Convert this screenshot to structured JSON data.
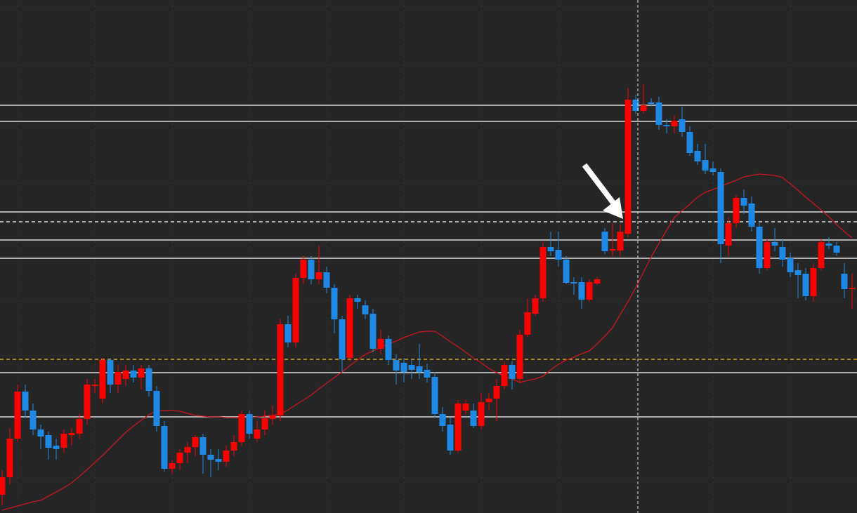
{
  "chart_data": {
    "type": "candlestick",
    "ylim": [
      0,
      731
    ],
    "up_color": "#ff0000",
    "down_color": "#1e88e5",
    "ma_color": "#c8161d",
    "open": [
      26,
      51,
      106,
      173,
      146,
      119,
      111,
      96,
      93,
      111,
      113,
      134,
      181,
      163,
      218,
      183,
      191,
      203,
      193,
      206,
      174,
      124,
      63,
      71,
      86,
      94,
      108,
      83,
      77,
      73,
      89,
      101,
      141,
      106,
      119,
      134,
      139,
      269,
      243,
      335,
      361,
      333,
      343,
      321,
      276,
      221,
      306,
      296,
      284,
      234,
      248,
      218,
      214,
      211,
      209,
      204,
      194,
      141,
      126,
      89,
      146,
      146,
      124,
      158,
      163,
      181,
      211,
      191,
      254,
      284,
      306,
      379,
      375,
      361,
      329,
      329,
      304,
      327,
      401,
      374,
      374,
      398,
      589,
      573,
      585,
      585,
      553,
      551,
      561,
      543,
      516,
      503,
      491,
      486,
      381,
      413,
      449,
      441,
      408,
      349,
      386,
      379,
      363,
      346,
      341,
      309,
      349,
      384,
      381,
      341,
      319
    ],
    "high": [
      61,
      121,
      183,
      183,
      156,
      126,
      116,
      106,
      119,
      121,
      141,
      191,
      191,
      221,
      221,
      211,
      211,
      211,
      211,
      211,
      181,
      131,
      76,
      91,
      101,
      111,
      113,
      91,
      91,
      96,
      111,
      146,
      146,
      131,
      146,
      153,
      276,
      281,
      341,
      366,
      366,
      381,
      351,
      326,
      281,
      311,
      311,
      303,
      291,
      261,
      253,
      226,
      221,
      219,
      241,
      213,
      201,
      151,
      136,
      161,
      161,
      156,
      171,
      171,
      191,
      216,
      216,
      261,
      306,
      311,
      386,
      401,
      401,
      366,
      336,
      336,
      333,
      336,
      406,
      413,
      411,
      606,
      596,
      611,
      591,
      593,
      561,
      566,
      579,
      551,
      526,
      526,
      501,
      491,
      421,
      453,
      461,
      451,
      413,
      391,
      406,
      391,
      371,
      356,
      349,
      356,
      391,
      393,
      386,
      356,
      341
    ],
    "low": [
      11,
      41,
      101,
      136,
      111,
      91,
      76,
      76,
      86,
      96,
      106,
      126,
      171,
      156,
      171,
      171,
      181,
      186,
      176,
      166,
      116,
      59,
      56,
      61,
      71,
      81,
      56,
      51,
      61,
      66,
      81,
      96,
      106,
      101,
      111,
      126,
      131,
      236,
      236,
      326,
      326,
      326,
      313,
      256,
      201,
      216,
      291,
      276,
      229,
      226,
      211,
      183,
      186,
      191,
      191,
      186,
      136,
      116,
      83,
      86,
      141,
      121,
      119,
      146,
      131,
      176,
      176,
      186,
      251,
      281,
      301,
      366,
      351,
      326,
      311,
      291,
      301,
      325,
      369,
      366,
      366,
      393,
      569,
      569,
      581,
      546,
      541,
      541,
      536,
      509,
      496,
      483,
      481,
      356,
      366,
      406,
      426,
      401,
      341,
      346,
      373,
      351,
      336,
      306,
      303,
      301,
      346,
      376,
      366,
      306,
      291
    ],
    "close": [
      51,
      106,
      173,
      146,
      119,
      109,
      93,
      91,
      113,
      114,
      134,
      183,
      183,
      218,
      183,
      201,
      203,
      193,
      206,
      174,
      124,
      63,
      71,
      86,
      94,
      108,
      83,
      76,
      73,
      89,
      101,
      141,
      113,
      119,
      135,
      139,
      269,
      243,
      335,
      361,
      333,
      343,
      321,
      276,
      219,
      306,
      301,
      283,
      234,
      248,
      218,
      203,
      201,
      204,
      201,
      193,
      141,
      124,
      89,
      156,
      156,
      124,
      158,
      163,
      181,
      211,
      191,
      254,
      286,
      306,
      379,
      373,
      361,
      328,
      327,
      304,
      329,
      333,
      373,
      376,
      401,
      589,
      573,
      581,
      583,
      553,
      551,
      559,
      543,
      513,
      501,
      488,
      486,
      383,
      413,
      449,
      438,
      408,
      349,
      386,
      381,
      361,
      343,
      339,
      309,
      349,
      386,
      381,
      371,
      319,
      321
    ],
    "ma": [
      4,
      7,
      10,
      13,
      16,
      18,
      24,
      30,
      36,
      43,
      52,
      62,
      72,
      82,
      93,
      104,
      115,
      124,
      132,
      140,
      146,
      146,
      146,
      145,
      142,
      139,
      138,
      137,
      137,
      136,
      136,
      136,
      136,
      137,
      138,
      139,
      141,
      147,
      154,
      161,
      168,
      177,
      185,
      193,
      201,
      210,
      218,
      226,
      231,
      236,
      241,
      245,
      250,
      254,
      258,
      259,
      259,
      252,
      244,
      237,
      229,
      221,
      214,
      206,
      200,
      195,
      191,
      186,
      189,
      191,
      195,
      204,
      212,
      218,
      222,
      227,
      231,
      241,
      252,
      264,
      283,
      301,
      321,
      343,
      365,
      384,
      403,
      421,
      431,
      440,
      450,
      457,
      461,
      465,
      470,
      474,
      479,
      481,
      483,
      482,
      481,
      478,
      469,
      460,
      450,
      441,
      432,
      422,
      411,
      401,
      392
    ],
    "levels": [
      {
        "value": 581,
        "color": "#dcdcdc",
        "style": "solid"
      },
      {
        "value": 558,
        "color": "#dcdcdc",
        "style": "solid"
      },
      {
        "value": 429,
        "color": "#dcdcdc",
        "style": "solid"
      },
      {
        "value": 415,
        "color": "#dcdcdc",
        "style": "dashed"
      },
      {
        "value": 389,
        "color": "#dcdcdc",
        "style": "solid"
      },
      {
        "value": 363,
        "color": "#dcdcdc",
        "style": "solid"
      },
      {
        "value": 219,
        "color": "#d4a020",
        "style": "dashed"
      },
      {
        "value": 200,
        "color": "#dcdcdc",
        "style": "solid"
      },
      {
        "value": 137,
        "color": "#dcdcdc",
        "style": "solid"
      }
    ]
  }
}
